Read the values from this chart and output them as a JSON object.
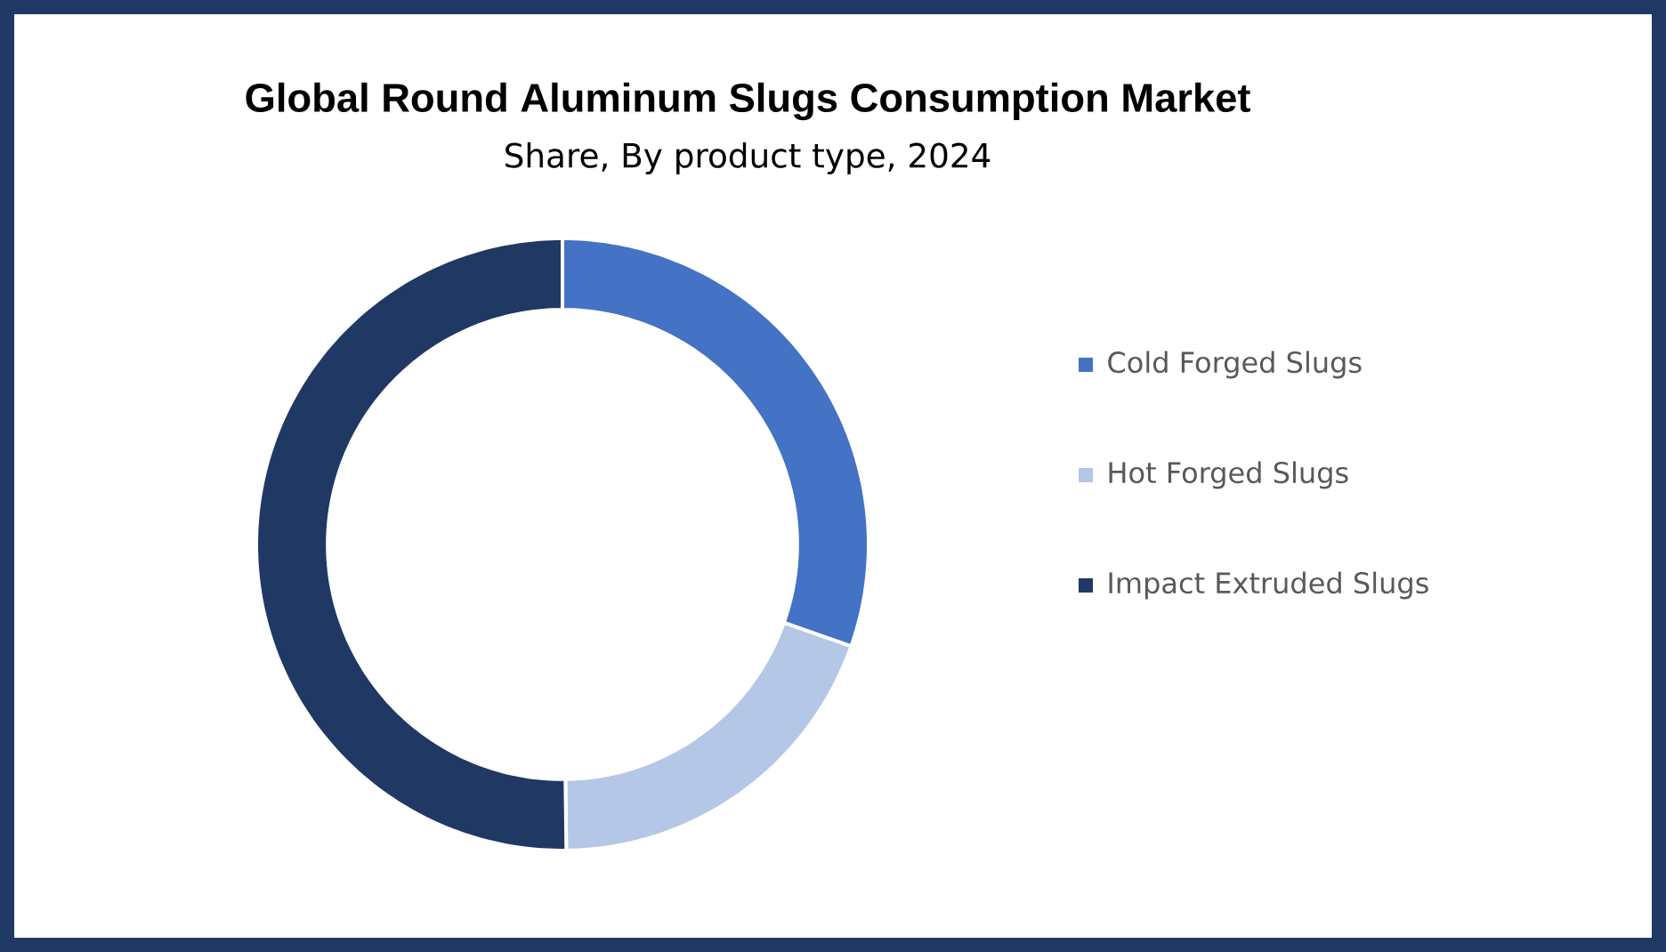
{
  "chart_data": {
    "type": "donut",
    "title": "Global Round Aluminum Slugs Consumption Market",
    "subtitle": "Share, By product type, 2024",
    "categories": [
      "Cold Forged Slugs",
      "Hot Forged Slugs",
      "Impact Extruded Slugs"
    ],
    "values": [
      30.4,
      19.4,
      50.2
    ],
    "colors": [
      "#4472c4",
      "#b4c7e7",
      "#203864"
    ],
    "legend": "right"
  }
}
